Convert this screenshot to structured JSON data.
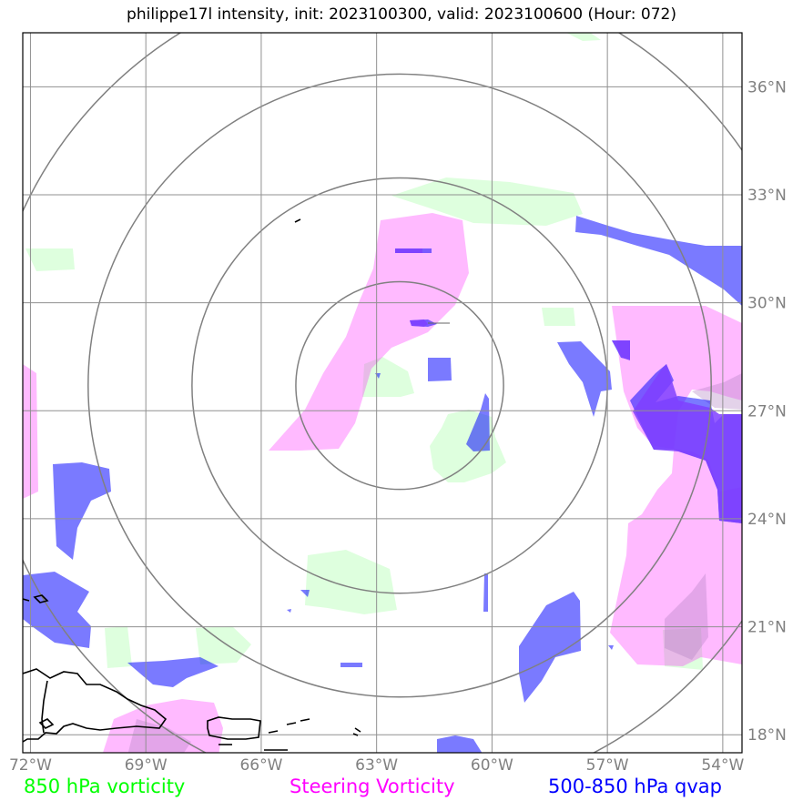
{
  "title": "philippe17l intensity, init: 2023100300, valid: 2023100600 (Hour: 072)",
  "colors": {
    "vort850": "#00ff00",
    "steering": "#ff00ff",
    "qvap": "#0000ff",
    "grid": "#808080",
    "coast": "#000000"
  },
  "map": {
    "lon_range": [
      -72.2,
      -53.5
    ],
    "lat_range": [
      17.5,
      37.5
    ],
    "x_ticks": [
      "72°W",
      "69°W",
      "66°W",
      "63°W",
      "60°W",
      "57°W",
      "54°W"
    ],
    "y_ticks": [
      "36°N",
      "33°N",
      "30°N",
      "27°N",
      "24°N",
      "21°N",
      "18°N"
    ],
    "storm_center": {
      "lon": -62.4,
      "lat": 27.7
    },
    "range_rings_deg": [
      2.7,
      5.4,
      8.1,
      10.8
    ]
  },
  "legend": {
    "vort850": "850 hPa vorticity",
    "steering": "Steering Vorticity",
    "qvap": "500-850 hPa qvap"
  }
}
